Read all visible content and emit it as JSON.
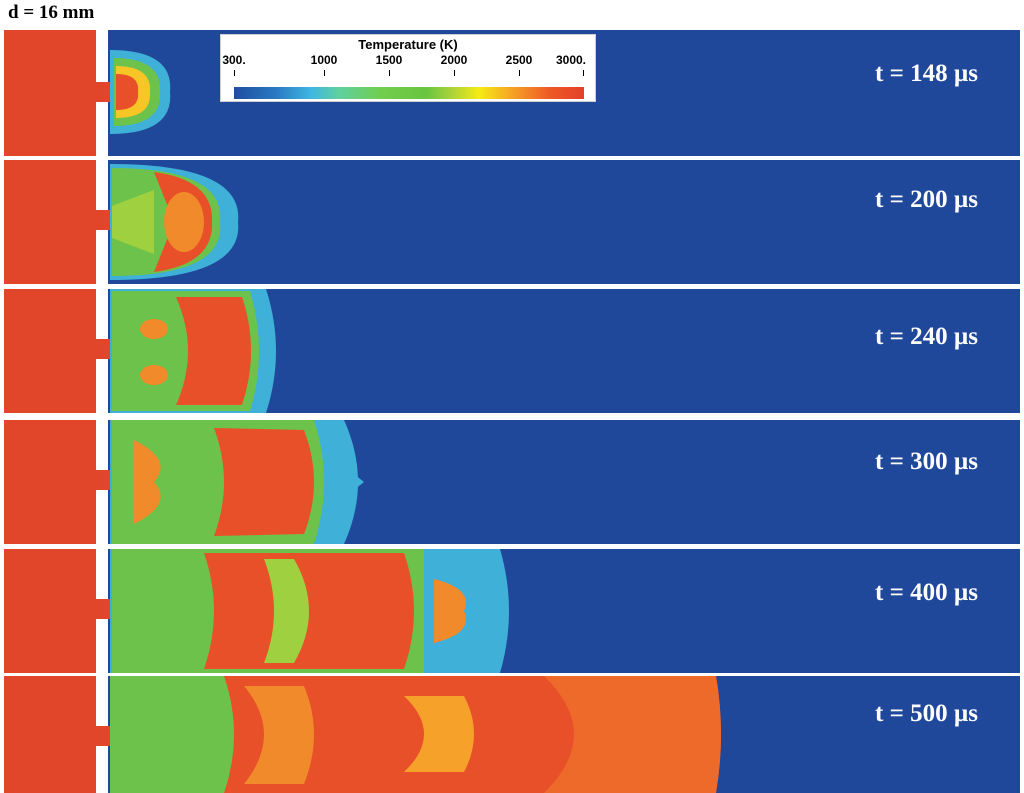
{
  "header": {
    "diameter_label": "d = 16 mm"
  },
  "colorbar": {
    "title": "Temperature (K)",
    "ticks": [
      "300.",
      "1000",
      "1500",
      "2000",
      "2500",
      "3000."
    ],
    "range": [
      300,
      3000
    ],
    "colormap": [
      "#1f4e9f",
      "#3fb6e2",
      "#72cd4e",
      "#f6eb14",
      "#ee5a25",
      "#e3402a"
    ]
  },
  "snapshots": [
    {
      "time_label": "t = 148 µs"
    },
    {
      "time_label": "t = 200 µs"
    },
    {
      "time_label": "t = 240 µs"
    },
    {
      "time_label": "t = 300 µs"
    },
    {
      "time_label": "t = 400 µs"
    },
    {
      "time_label": "t = 500 µs"
    }
  ],
  "colors": {
    "cold_background": "#20489a",
    "prechamber": "#e2462a",
    "hot": "#e8502a",
    "warm": "#f08a2a",
    "mid": "#6cc24a",
    "cool": "#3fb0d8"
  }
}
